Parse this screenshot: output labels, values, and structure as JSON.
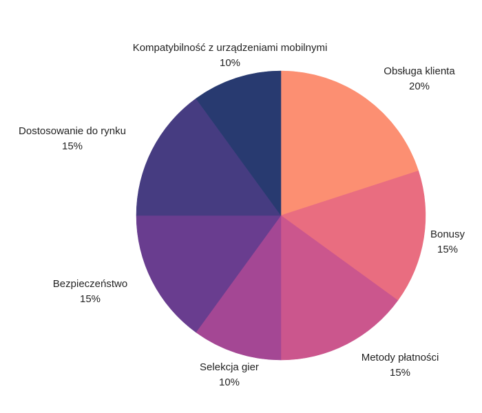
{
  "chart_data": {
    "type": "pie",
    "title": "",
    "start_angle_deg": 0,
    "direction": "clockwise",
    "legend": "none (inline labels)",
    "slices": [
      {
        "label": "Obsługa klienta",
        "value": 20,
        "display": "20%",
        "color": "#FC8F72"
      },
      {
        "label": "Bonusy",
        "value": 15,
        "display": "15%",
        "color": "#E96D80"
      },
      {
        "label": "Metody płatności",
        "value": 15,
        "display": "15%",
        "color": "#CB568D"
      },
      {
        "label": "Selekcja gier",
        "value": 10,
        "display": "10%",
        "color": "#A44794"
      },
      {
        "label": "Bezpieczeństwo",
        "value": 15,
        "display": "15%",
        "color": "#693D8F"
      },
      {
        "label": "Dostosowanie do rynku",
        "value": 15,
        "display": "15%",
        "color": "#463C81"
      },
      {
        "label": "Kompatybilność z urządzeniami mobilnymi",
        "value": 10,
        "display": "10%",
        "color": "#283A70"
      }
    ]
  }
}
